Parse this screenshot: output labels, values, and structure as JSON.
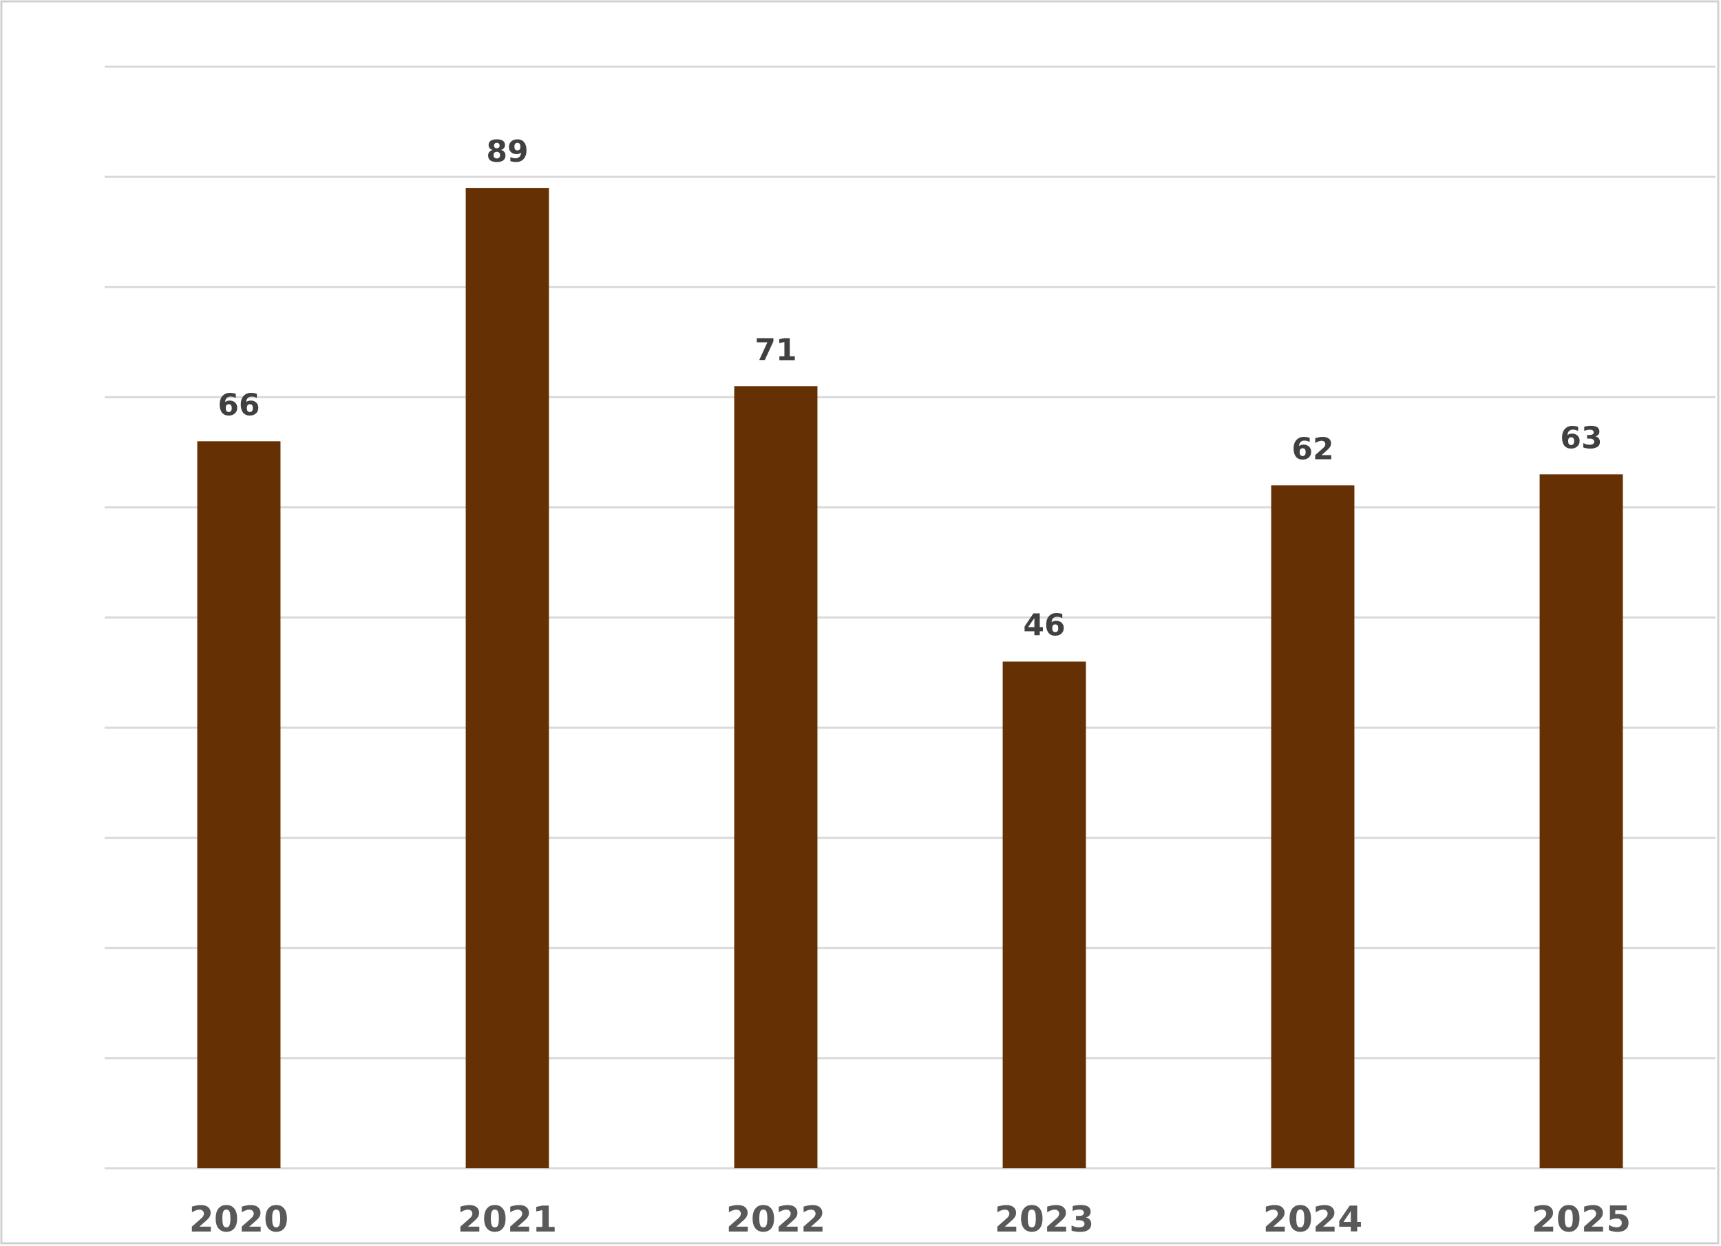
{
  "chart_data": {
    "type": "bar",
    "categories": [
      "2020",
      "2021",
      "2022",
      "2023",
      "2024",
      "2025"
    ],
    "values": [
      66,
      89,
      71,
      46,
      62,
      63
    ],
    "color": "#663005",
    "ylim": [
      0,
      100
    ],
    "yticks": [
      0,
      10,
      20,
      30,
      40,
      50,
      60,
      70,
      80,
      90,
      100
    ],
    "grid": true
  }
}
